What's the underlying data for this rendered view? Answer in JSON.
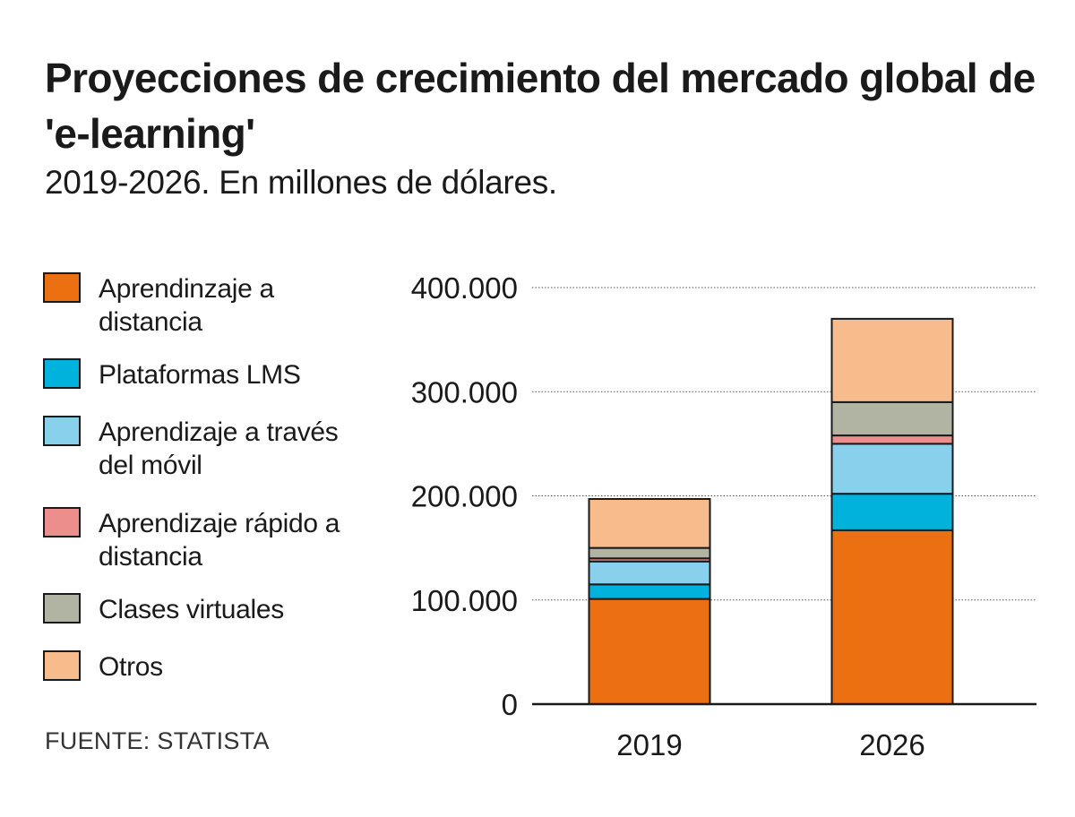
{
  "header": {
    "title": "Proyecciones de crecimiento del mercado global de 'e-learning'",
    "subtitle": "2019-2026. En millones de dólares."
  },
  "legend": {
    "items": [
      {
        "label": "Aprendinzaje a distancia",
        "color": "#ec6f12"
      },
      {
        "label": "Plataformas LMS",
        "color": "#00b2dc"
      },
      {
        "label": "Aprendizaje a través del móvil",
        "color": "#88d0ec"
      },
      {
        "label": "Aprendizaje rápido a distancia",
        "color": "#ec8e8c"
      },
      {
        "label": "Clases virtuales",
        "color": "#b1b3a3"
      },
      {
        "label": "Otros",
        "color": "#f8bb8c"
      }
    ]
  },
  "footer": {
    "source": "FUENTE: STATISTA"
  },
  "chart_data": {
    "type": "bar",
    "stacked": true,
    "categories": [
      "2019",
      "2026"
    ],
    "series": [
      {
        "name": "Aprendinzaje a distancia",
        "color": "#ec6f12",
        "values": [
          101000,
          167000
        ]
      },
      {
        "name": "Plataformas LMS",
        "color": "#00b2dc",
        "values": [
          14000,
          35000
        ]
      },
      {
        "name": "Aprendizaje a través del móvil",
        "color": "#88d0ec",
        "values": [
          22000,
          48000
        ]
      },
      {
        "name": "Aprendizaje rápido a distancia",
        "color": "#ec8e8c",
        "values": [
          3000,
          8000
        ]
      },
      {
        "name": "Clases virtuales",
        "color": "#b1b3a3",
        "values": [
          10000,
          32000
        ]
      },
      {
        "name": "Otros",
        "color": "#f8bb8c",
        "values": [
          47000,
          80000
        ]
      }
    ],
    "ylim": [
      0,
      400000
    ],
    "yticks": [
      0,
      100000,
      200000,
      300000,
      400000
    ],
    "ytick_labels": [
      "0",
      "100.000",
      "200.000",
      "300.000",
      "400.000"
    ],
    "xlabel": "",
    "ylabel": "",
    "grid": true
  }
}
